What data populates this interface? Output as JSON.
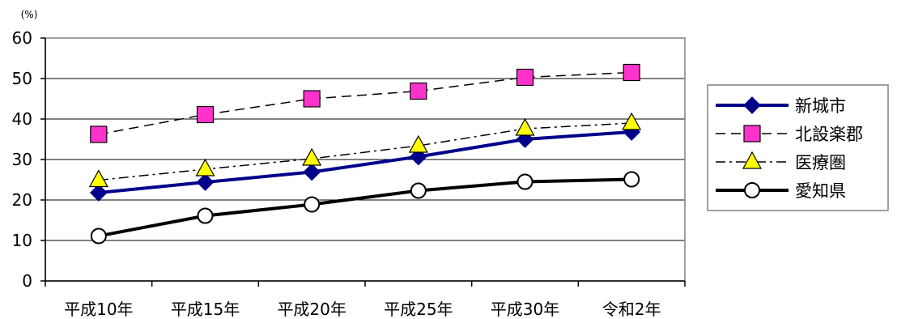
{
  "chart_data": {
    "type": "line",
    "title": "",
    "xlabel": "",
    "ylabel": "",
    "unit": "(%)",
    "categories": [
      "平成10年",
      "平成15年",
      "平成20年",
      "平成25年",
      "平成30年",
      "令和2年"
    ],
    "ylim": [
      0,
      60
    ],
    "yticks": [
      0,
      10,
      20,
      30,
      40,
      50,
      60
    ],
    "grid": true,
    "legend_position": "right",
    "series": [
      {
        "name": "新城市",
        "values": [
          21.8,
          24.4,
          26.9,
          30.7,
          35.0,
          36.8
        ],
        "color": "#00008B",
        "marker": "diamond",
        "line": "solid",
        "marker_fill": "#00008B"
      },
      {
        "name": "北設楽郡",
        "values": [
          36.2,
          41.1,
          45.0,
          46.9,
          50.3,
          51.5
        ],
        "color": "#000000",
        "marker": "square",
        "line": "dashed",
        "marker_fill": "#FF33CC"
      },
      {
        "name": "医療圏",
        "values": [
          24.9,
          27.6,
          30.2,
          33.4,
          37.6,
          39.0
        ],
        "color": "#000000",
        "marker": "triangle",
        "line": "dashdot",
        "marker_fill": "#FFFF00"
      },
      {
        "name": "愛知県",
        "values": [
          11.1,
          16.1,
          18.9,
          22.3,
          24.5,
          25.1
        ],
        "color": "#000000",
        "marker": "circle",
        "line": "solid",
        "marker_fill": "#FFFFFF"
      }
    ]
  }
}
